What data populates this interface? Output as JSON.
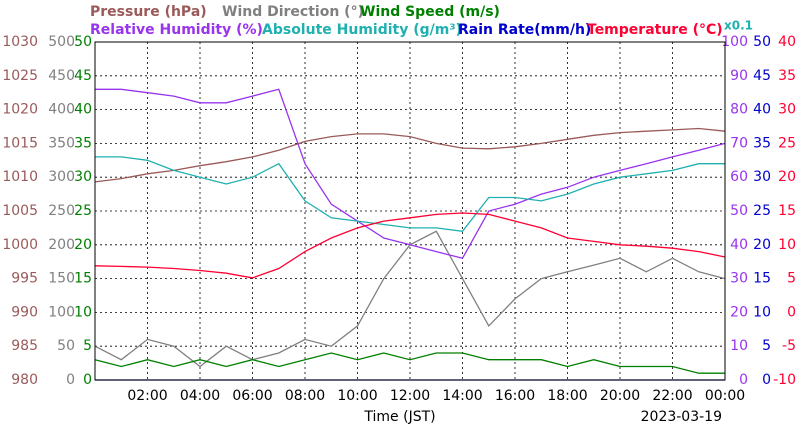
{
  "chart_data": {
    "type": "line",
    "x_label": "Time (JST)",
    "date": "2023-03-19",
    "scale_note": "x0.1",
    "x": [
      0,
      1,
      2,
      3,
      4,
      5,
      6,
      7,
      8,
      9,
      10,
      11,
      12,
      13,
      14,
      15,
      16,
      17,
      18,
      19,
      20,
      21,
      22,
      23,
      24
    ],
    "xlim": [
      0,
      24
    ],
    "xticks": [
      {
        "value": 2,
        "label": "02:00"
      },
      {
        "value": 4,
        "label": "04:00"
      },
      {
        "value": 6,
        "label": "06:00"
      },
      {
        "value": 8,
        "label": "08:00"
      },
      {
        "value": 10,
        "label": "10:00"
      },
      {
        "value": 12,
        "label": "12:00"
      },
      {
        "value": 14,
        "label": "14:00"
      },
      {
        "value": 16,
        "label": "16:00"
      },
      {
        "value": 18,
        "label": "18:00"
      },
      {
        "value": 20,
        "label": "20:00"
      },
      {
        "value": 22,
        "label": "22:00"
      },
      {
        "value": 24,
        "label": "00:00"
      }
    ],
    "grid": true,
    "axes": [
      {
        "label": "Pressure (hPa)",
        "color": "#9b5a5a",
        "side": "left",
        "ylim": [
          980,
          1030
        ],
        "yticks": [
          980,
          985,
          990,
          995,
          1000,
          1005,
          1010,
          1015,
          1020,
          1025,
          1030
        ]
      },
      {
        "label": "Wind Direction (°)",
        "color": "#808080",
        "side": "left",
        "ylim": [
          0,
          500
        ],
        "yticks": [
          0,
          50,
          100,
          150,
          200,
          250,
          300,
          350,
          400,
          450,
          500
        ]
      },
      {
        "label": "Wind Speed (m/s)",
        "color": "#008000",
        "side": "left",
        "ylim": [
          0,
          50
        ],
        "yticks": [
          0,
          5,
          10,
          15,
          20,
          25,
          30,
          35,
          40,
          45,
          50
        ]
      },
      {
        "label": "Relative Humidity (%)",
        "color": "#9933ee",
        "side": "right",
        "ylim": [
          0,
          100
        ],
        "yticks": [
          0,
          10,
          20,
          30,
          40,
          50,
          60,
          70,
          80,
          90,
          100
        ]
      },
      {
        "label": "Absolute Humidity (g/m³)",
        "color": "#20b0b0",
        "side": "none"
      },
      {
        "label": "Rain Rate(mm/h)",
        "color": "#0000cc",
        "side": "right",
        "ylim": [
          0,
          50
        ],
        "yticks": [
          0,
          5,
          10,
          15,
          20,
          25,
          30,
          35,
          40,
          45,
          50
        ]
      },
      {
        "label": "Temperature (°C)",
        "color": "#ff0033",
        "side": "right",
        "ylim": [
          -10,
          40
        ],
        "yticks": [
          -10,
          -5,
          0,
          5,
          10,
          15,
          20,
          25,
          30,
          35,
          40
        ]
      }
    ],
    "series": [
      {
        "axis": 0,
        "color": "#9b5a5a",
        "values": [
          1009.3,
          1009.8,
          1010.5,
          1011,
          1011.7,
          1012.3,
          1013,
          1014,
          1015.3,
          1016,
          1016.4,
          1016.4,
          1016,
          1015,
          1014.3,
          1014.2,
          1014.5,
          1015,
          1015.6,
          1016.2,
          1016.6,
          1016.8,
          1017,
          1017.2,
          1016.8
        ]
      },
      {
        "axis": 1,
        "color": "#808080",
        "values": [
          50,
          30,
          60,
          50,
          20,
          50,
          30,
          40,
          60,
          50,
          80,
          150,
          200,
          220,
          150,
          80,
          120,
          150,
          160,
          170,
          180,
          160,
          180,
          160,
          150
        ]
      },
      {
        "axis": 2,
        "color": "#008000",
        "values": [
          3,
          2,
          3,
          2,
          3,
          2,
          3,
          2,
          3,
          4,
          3,
          4,
          3,
          4,
          4,
          3,
          3,
          3,
          2,
          3,
          2,
          2,
          2,
          1,
          1
        ]
      },
      {
        "axis": 3,
        "color": "#9933ee",
        "values": [
          86,
          86,
          85,
          84,
          82,
          82,
          84,
          86,
          64,
          52,
          47,
          42,
          40,
          38,
          36,
          50,
          52,
          55,
          57,
          60,
          62,
          64,
          66,
          68,
          70
        ]
      },
      {
        "axis": 3,
        "color": "#20b0b0",
        "values": [
          66,
          66,
          65,
          62,
          60,
          58,
          60,
          64,
          53,
          48,
          47,
          46,
          45,
          45,
          44,
          54,
          54,
          53,
          55,
          58,
          60,
          61,
          62,
          64,
          64
        ]
      },
      {
        "axis": 5,
        "color": "#0000cc",
        "values": [
          0,
          0,
          0,
          0,
          0,
          0,
          0,
          0,
          0,
          0,
          0,
          0,
          0,
          0,
          0,
          0,
          0,
          0,
          0,
          0,
          0,
          0,
          0,
          0,
          0
        ]
      },
      {
        "axis": 6,
        "color": "#ff0033",
        "values": [
          6.9,
          6.8,
          6.7,
          6.5,
          6.2,
          5.8,
          5.1,
          6.5,
          9,
          11,
          12.5,
          13.5,
          14,
          14.5,
          14.7,
          14.5,
          13.5,
          12.5,
          11,
          10.5,
          10,
          9.8,
          9.5,
          9,
          8.2
        ]
      }
    ]
  }
}
